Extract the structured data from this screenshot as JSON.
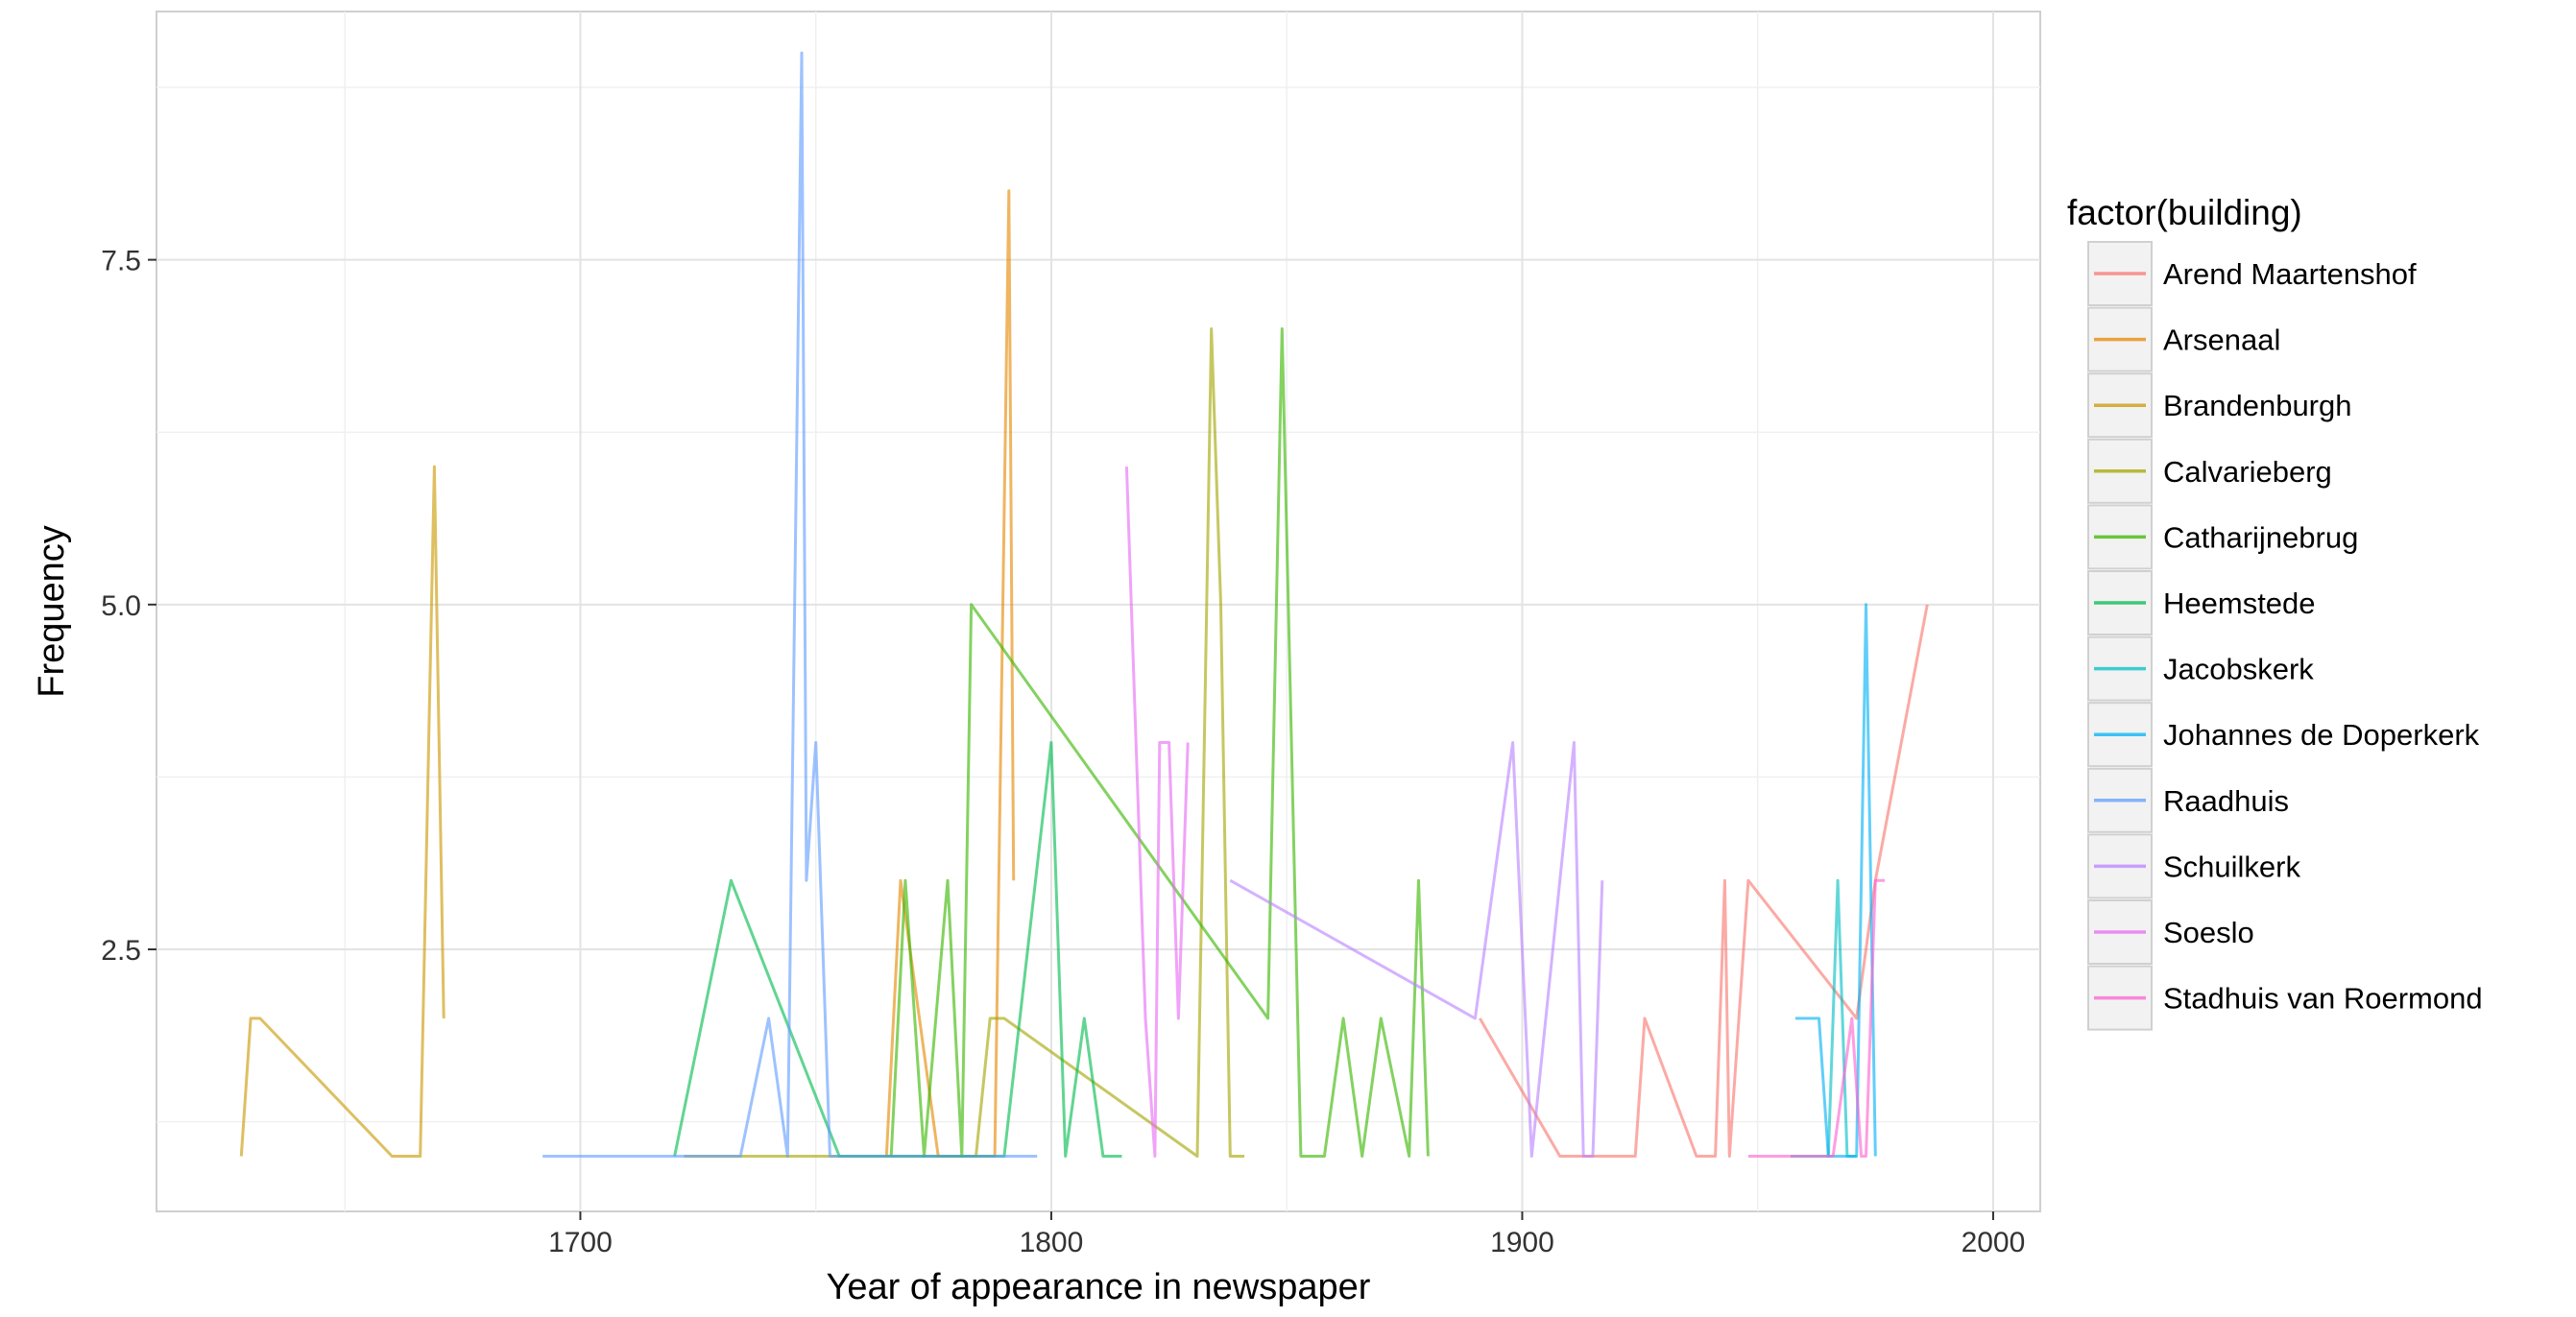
{
  "chart_data": {
    "type": "line",
    "title": "",
    "xlabel": "Year of appearance in newspaper",
    "ylabel": "Frequency",
    "xlim": [
      1610,
      2010
    ],
    "ylim": [
      0.6,
      9.3
    ],
    "x_ticks": [
      1700,
      1800,
      1900,
      2000
    ],
    "x_tick_labels": [
      "1700",
      "1800",
      "1900",
      "2000"
    ],
    "y_ticks": [
      2.5,
      5.0,
      7.5
    ],
    "y_tick_labels": [
      "2.5",
      "5.0",
      "7.5"
    ],
    "grid": true,
    "legend": {
      "title": "factor(building)",
      "placement": "right"
    },
    "series": [
      {
        "name": "Arend Maartenshof",
        "color": "#f8766d",
        "x": [
          1891,
          1908,
          1918,
          1924,
          1926,
          1937,
          1939,
          1941,
          1943,
          1944,
          1948,
          1971,
          1975,
          1986
        ],
        "y": [
          2,
          1,
          1,
          1,
          2,
          1,
          1,
          1,
          3,
          1,
          3,
          2,
          3,
          5
        ]
      },
      {
        "name": "Arsenaal",
        "color": "#e58700",
        "x": [
          1765,
          1768,
          1772,
          1776,
          1788,
          1791,
          1792
        ],
        "y": [
          1,
          3,
          2,
          1,
          1,
          8,
          3
        ]
      },
      {
        "name": "Brandenburgh",
        "color": "#c99800",
        "x": [
          1628,
          1630,
          1632,
          1660,
          1666,
          1669,
          1671
        ],
        "y": [
          1,
          2,
          2,
          1,
          1,
          6,
          2
        ]
      },
      {
        "name": "Calvarieberg",
        "color": "#a3a500",
        "x": [
          1722,
          1780,
          1784,
          1787,
          1790,
          1831,
          1834,
          1836,
          1838,
          1841
        ],
        "y": [
          1,
          1,
          1,
          2,
          2,
          1,
          7,
          5,
          1,
          1
        ]
      },
      {
        "name": "Catharijnebrug",
        "color": "#39b600",
        "x": [
          1766,
          1769,
          1773,
          1778,
          1781,
          1783,
          1846,
          1849,
          1853,
          1858,
          1862,
          1866,
          1870,
          1876,
          1878,
          1880
        ],
        "y": [
          1,
          3,
          1,
          3,
          1,
          5,
          2,
          7,
          1,
          1,
          2,
          1,
          2,
          1,
          3,
          1
        ]
      },
      {
        "name": "Heemstede",
        "color": "#00bb4e",
        "x": [
          1720,
          1732,
          1755,
          1766,
          1784,
          1790,
          1800,
          1803,
          1807,
          1811,
          1815
        ],
        "y": [
          1,
          3,
          1,
          1,
          1,
          1,
          4,
          1,
          2,
          1,
          1
        ]
      },
      {
        "name": "Jacobskerk",
        "color": "#00bfc4",
        "x": [
          1957,
          1960,
          1965,
          1967,
          1969,
          1971
        ],
        "y": [
          1,
          1,
          1,
          3,
          1,
          1
        ]
      },
      {
        "name": "Johannes de Doperkerk",
        "color": "#00b0f6",
        "x": [
          1958,
          1960,
          1963,
          1965,
          1971,
          1973,
          1975
        ],
        "y": [
          2,
          2,
          2,
          1,
          1,
          5,
          1
        ]
      },
      {
        "name": "Raadhuis",
        "color": "#619cff",
        "x": [
          1692,
          1734,
          1740,
          1744,
          1747,
          1748,
          1750,
          1753,
          1760,
          1797
        ],
        "y": [
          1,
          1,
          2,
          1,
          9,
          3,
          4,
          1,
          1,
          1
        ]
      },
      {
        "name": "Schuilkerk",
        "color": "#b983ff",
        "x": [
          1838,
          1890,
          1898,
          1902,
          1911,
          1913,
          1915,
          1917
        ],
        "y": [
          3,
          2,
          4,
          1,
          4,
          1,
          1,
          3
        ]
      },
      {
        "name": "Soeslo",
        "color": "#e76bf3",
        "x": [
          1816,
          1820,
          1822,
          1823,
          1825,
          1827,
          1829
        ],
        "y": [
          6,
          2,
          1,
          4,
          4,
          2,
          4
        ]
      },
      {
        "name": "Stadhuis van Roermond",
        "color": "#fd61d1",
        "x": [
          1948,
          1962,
          1966,
          1970,
          1972,
          1973,
          1975,
          1977
        ],
        "y": [
          1,
          1,
          1,
          2,
          1,
          1,
          3,
          3
        ]
      }
    ]
  }
}
